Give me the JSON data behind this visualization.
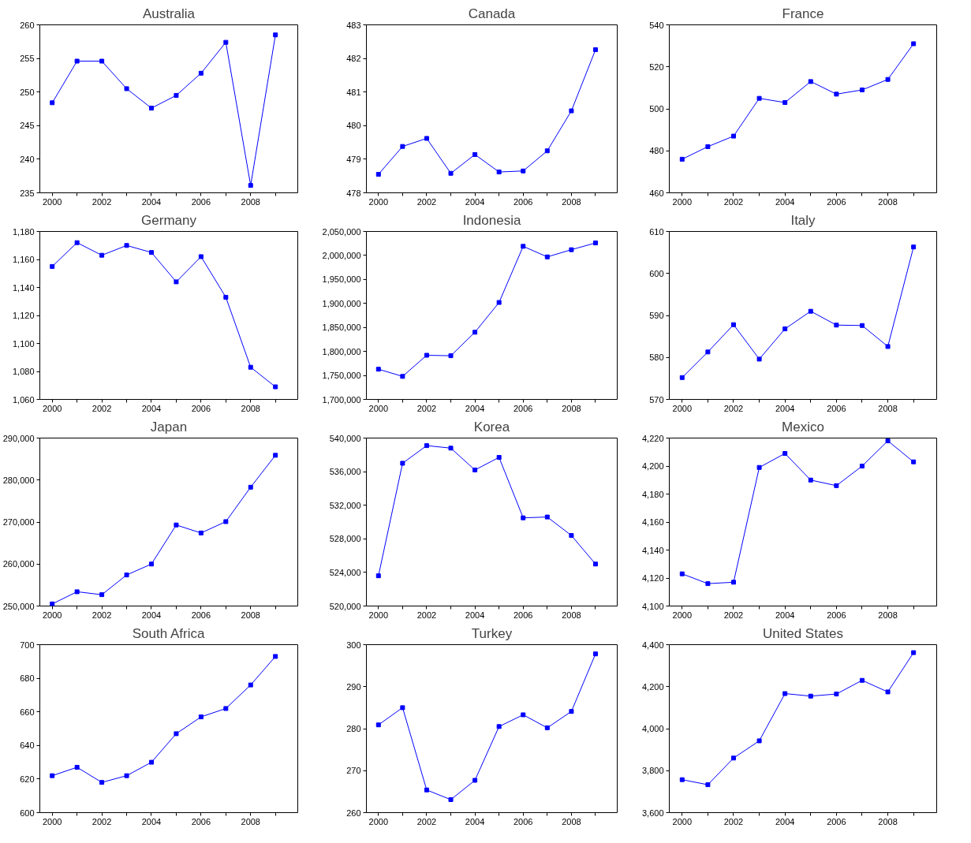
{
  "chart_data": [
    {
      "type": "line",
      "title": "Australia",
      "color": "#0000ff",
      "marker": "square",
      "x": [
        2000,
        2001,
        2002,
        2003,
        2004,
        2005,
        2006,
        2007,
        2008,
        2009
      ],
      "values": [
        248.4,
        254.6,
        254.6,
        250.5,
        247.6,
        249.5,
        252.8,
        257.4,
        236.1,
        258.5
      ],
      "xlim": [
        1999.5,
        2009.9
      ],
      "xticks": [
        2000,
        {
          "value": 2001,
          "label": null
        },
        2002,
        {
          "value": 2003,
          "label": null
        },
        2004,
        {
          "value": 2005,
          "label": null
        },
        2006,
        {
          "value": 2007,
          "label": null
        },
        2008,
        {
          "value": 2009,
          "label": null
        }
      ],
      "ylim": [
        235,
        260
      ],
      "yticks": [
        235,
        240,
        245,
        250,
        255,
        260
      ]
    },
    {
      "type": "line",
      "title": "Canada",
      "color": "#0000ff",
      "marker": "square",
      "x": [
        2000,
        2001,
        2002,
        2003,
        2004,
        2005,
        2006,
        2007,
        2008,
        2009
      ],
      "values": [
        478.55,
        479.38,
        479.62,
        478.58,
        479.14,
        478.62,
        478.65,
        479.25,
        480.44,
        482.26
      ],
      "xlim": [
        1999.5,
        2009.9
      ],
      "xticks": [
        2000,
        {
          "value": 2001,
          "label": null
        },
        2002,
        {
          "value": 2003,
          "label": null
        },
        2004,
        {
          "value": 2005,
          "label": null
        },
        2006,
        {
          "value": 2007,
          "label": null
        },
        2008,
        {
          "value": 2009,
          "label": null
        }
      ],
      "ylim": [
        478,
        483
      ],
      "yticks": [
        478,
        479,
        480,
        481,
        482,
        483
      ]
    },
    {
      "type": "line",
      "title": "France",
      "color": "#0000ff",
      "marker": "square",
      "x": [
        2000,
        2001,
        2002,
        2003,
        2004,
        2005,
        2006,
        2007,
        2008,
        2009
      ],
      "values": [
        476,
        482,
        487,
        505,
        503,
        513,
        507,
        509,
        514,
        531
      ],
      "xlim": [
        1999.5,
        2009.9
      ],
      "xticks": [
        2000,
        {
          "value": 2001,
          "label": null
        },
        2002,
        {
          "value": 2003,
          "label": null
        },
        2004,
        {
          "value": 2005,
          "label": null
        },
        2006,
        {
          "value": 2007,
          "label": null
        },
        2008,
        {
          "value": 2009,
          "label": null
        }
      ],
      "ylim": [
        460,
        540
      ],
      "yticks": [
        460,
        480,
        500,
        520,
        540
      ]
    },
    {
      "type": "line",
      "title": "Germany",
      "color": "#0000ff",
      "marker": "square",
      "x": [
        2000,
        2001,
        2002,
        2003,
        2004,
        2005,
        2006,
        2007,
        2008,
        2009
      ],
      "values": [
        1155,
        1172,
        1163,
        1170,
        1165,
        1144,
        1162,
        1133,
        1083,
        1069
      ],
      "xlim": [
        1999.5,
        2009.9
      ],
      "xticks": [
        2000,
        {
          "value": 2001,
          "label": null
        },
        2002,
        {
          "value": 2003,
          "label": null
        },
        2004,
        {
          "value": 2005,
          "label": null
        },
        2006,
        {
          "value": 2007,
          "label": null
        },
        2008,
        {
          "value": 2009,
          "label": null
        }
      ],
      "ylim": [
        1060,
        1180
      ],
      "yticks": [
        {
          "value": 1060,
          "label": "1,060"
        },
        {
          "value": 1080,
          "label": "1,080"
        },
        {
          "value": 1100,
          "label": "1,100"
        },
        {
          "value": 1120,
          "label": "1,120"
        },
        {
          "value": 1140,
          "label": "1,140"
        },
        {
          "value": 1160,
          "label": "1,160"
        },
        {
          "value": 1180,
          "label": "1,180"
        }
      ]
    },
    {
      "type": "line",
      "title": "Indonesia",
      "color": "#0000ff",
      "marker": "square",
      "x": [
        2000,
        2001,
        2002,
        2003,
        2004,
        2005,
        2006,
        2007,
        2008,
        2009
      ],
      "values": [
        1763000,
        1748000,
        1792000,
        1791000,
        1840000,
        1902000,
        2019000,
        1997000,
        2012000,
        2026000
      ],
      "xlim": [
        1999.5,
        2009.9
      ],
      "xticks": [
        2000,
        {
          "value": 2001,
          "label": null
        },
        2002,
        {
          "value": 2003,
          "label": null
        },
        2004,
        {
          "value": 2005,
          "label": null
        },
        2006,
        {
          "value": 2007,
          "label": null
        },
        2008,
        {
          "value": 2009,
          "label": null
        }
      ],
      "ylim": [
        1700000,
        2050000
      ],
      "yticks": [
        {
          "value": 1700000,
          "label": "1,700,000"
        },
        {
          "value": 1750000,
          "label": "1,750,000"
        },
        {
          "value": 1800000,
          "label": "1,800,000"
        },
        {
          "value": 1850000,
          "label": "1,850,000"
        },
        {
          "value": 1900000,
          "label": "1,900,000"
        },
        {
          "value": 1950000,
          "label": "1,950,000"
        },
        {
          "value": 2000000,
          "label": "2,000,000"
        },
        {
          "value": 2050000,
          "label": "2,050,000"
        }
      ]
    },
    {
      "type": "line",
      "title": "Italy",
      "color": "#0000ff",
      "marker": "square",
      "x": [
        2000,
        2001,
        2002,
        2003,
        2004,
        2005,
        2006,
        2007,
        2008,
        2009
      ],
      "values": [
        575.2,
        581.3,
        587.8,
        579.6,
        586.8,
        591.0,
        587.7,
        587.6,
        582.6,
        606.3
      ],
      "xlim": [
        1999.5,
        2009.9
      ],
      "xticks": [
        2000,
        {
          "value": 2001,
          "label": null
        },
        2002,
        {
          "value": 2003,
          "label": null
        },
        2004,
        {
          "value": 2005,
          "label": null
        },
        2006,
        {
          "value": 2007,
          "label": null
        },
        2008,
        {
          "value": 2009,
          "label": null
        }
      ],
      "ylim": [
        570,
        610
      ],
      "yticks": [
        570,
        580,
        590,
        600,
        610
      ]
    },
    {
      "type": "line",
      "title": "Japan",
      "color": "#0000ff",
      "marker": "square",
      "x": [
        2000,
        2001,
        2002,
        2003,
        2004,
        2005,
        2006,
        2007,
        2008,
        2009
      ],
      "values": [
        250500,
        253400,
        252700,
        257400,
        260000,
        269300,
        267400,
        270100,
        278300,
        285900
      ],
      "xlim": [
        1999.5,
        2009.9
      ],
      "xticks": [
        2000,
        {
          "value": 2001,
          "label": null
        },
        2002,
        {
          "value": 2003,
          "label": null
        },
        2004,
        {
          "value": 2005,
          "label": null
        },
        2006,
        {
          "value": 2007,
          "label": null
        },
        2008,
        {
          "value": 2009,
          "label": null
        }
      ],
      "ylim": [
        250000,
        290000
      ],
      "yticks": [
        {
          "value": 250000,
          "label": "250,000"
        },
        {
          "value": 260000,
          "label": "260,000"
        },
        {
          "value": 270000,
          "label": "270,000"
        },
        {
          "value": 280000,
          "label": "280,000"
        },
        {
          "value": 290000,
          "label": "290,000"
        }
      ]
    },
    {
      "type": "line",
      "title": "Korea",
      "color": "#0000ff",
      "marker": "square",
      "x": [
        2000,
        2001,
        2002,
        2003,
        2004,
        2005,
        2006,
        2007,
        2008,
        2009
      ],
      "values": [
        523600,
        537000,
        539100,
        538800,
        536200,
        537700,
        530500,
        530600,
        528400,
        525000
      ],
      "xlim": [
        1999.5,
        2009.9
      ],
      "xticks": [
        2000,
        {
          "value": 2001,
          "label": null
        },
        2002,
        {
          "value": 2003,
          "label": null
        },
        2004,
        {
          "value": 2005,
          "label": null
        },
        2006,
        {
          "value": 2007,
          "label": null
        },
        2008,
        {
          "value": 2009,
          "label": null
        }
      ],
      "ylim": [
        520000,
        540000
      ],
      "yticks": [
        {
          "value": 520000,
          "label": "520,000"
        },
        {
          "value": 524000,
          "label": "524,000"
        },
        {
          "value": 528000,
          "label": "528,000"
        },
        {
          "value": 532000,
          "label": "532,000"
        },
        {
          "value": 536000,
          "label": "536,000"
        },
        {
          "value": 540000,
          "label": "540,000"
        }
      ]
    },
    {
      "type": "line",
      "title": "Mexico",
      "color": "#0000ff",
      "marker": "square",
      "x": [
        2000,
        2001,
        2002,
        2003,
        2004,
        2005,
        2006,
        2007,
        2008,
        2009
      ],
      "values": [
        4123,
        4116,
        4117,
        4199,
        4209,
        4190,
        4186,
        4200,
        4218,
        4203
      ],
      "xlim": [
        1999.5,
        2009.9
      ],
      "xticks": [
        2000,
        {
          "value": 2001,
          "label": null
        },
        2002,
        {
          "value": 2003,
          "label": null
        },
        2004,
        {
          "value": 2005,
          "label": null
        },
        2006,
        {
          "value": 2007,
          "label": null
        },
        2008,
        {
          "value": 2009,
          "label": null
        }
      ],
      "ylim": [
        4100,
        4220
      ],
      "yticks": [
        {
          "value": 4100,
          "label": "4,100"
        },
        {
          "value": 4120,
          "label": "4,120"
        },
        {
          "value": 4140,
          "label": "4,140"
        },
        {
          "value": 4160,
          "label": "4,160"
        },
        {
          "value": 4180,
          "label": "4,180"
        },
        {
          "value": 4200,
          "label": "4,200"
        },
        {
          "value": 4220,
          "label": "4,220"
        }
      ]
    },
    {
      "type": "line",
      "title": "South Africa",
      "color": "#0000ff",
      "marker": "square",
      "x": [
        2000,
        2001,
        2002,
        2003,
        2004,
        2005,
        2006,
        2007,
        2008,
        2009
      ],
      "values": [
        622,
        627,
        618,
        622,
        630,
        647,
        657,
        662,
        676,
        693
      ],
      "xlim": [
        1999.5,
        2009.9
      ],
      "xticks": [
        2000,
        {
          "value": 2001,
          "label": null
        },
        2002,
        {
          "value": 2003,
          "label": null
        },
        2004,
        {
          "value": 2005,
          "label": null
        },
        2006,
        {
          "value": 2007,
          "label": null
        },
        2008,
        {
          "value": 2009,
          "label": null
        }
      ],
      "ylim": [
        600,
        700
      ],
      "yticks": [
        600,
        620,
        640,
        660,
        680,
        700
      ]
    },
    {
      "type": "line",
      "title": "Turkey",
      "color": "#0000ff",
      "marker": "square",
      "x": [
        2000,
        2001,
        2002,
        2003,
        2004,
        2005,
        2006,
        2007,
        2008,
        2009
      ],
      "values": [
        280.9,
        285.0,
        265.4,
        263.1,
        267.7,
        280.5,
        283.3,
        280.2,
        284.1,
        297.8
      ],
      "xlim": [
        1999.5,
        2009.9
      ],
      "xticks": [
        2000,
        {
          "value": 2001,
          "label": null
        },
        2002,
        {
          "value": 2003,
          "label": null
        },
        2004,
        {
          "value": 2005,
          "label": null
        },
        2006,
        {
          "value": 2007,
          "label": null
        },
        2008,
        {
          "value": 2009,
          "label": null
        }
      ],
      "ylim": [
        260,
        300
      ],
      "yticks": [
        260,
        270,
        280,
        290,
        300
      ]
    },
    {
      "type": "line",
      "title": "United States",
      "color": "#0000ff",
      "marker": "square",
      "x": [
        2000,
        2001,
        2002,
        2003,
        2004,
        2005,
        2006,
        2007,
        2008,
        2009
      ],
      "values": [
        3757,
        3733,
        3860,
        3942,
        4167,
        4155,
        4165,
        4230,
        4175,
        4362
      ],
      "xlim": [
        1999.5,
        2009.9
      ],
      "xticks": [
        2000,
        {
          "value": 2001,
          "label": null
        },
        2002,
        {
          "value": 2003,
          "label": null
        },
        2004,
        {
          "value": 2005,
          "label": null
        },
        2006,
        {
          "value": 2007,
          "label": null
        },
        2008,
        {
          "value": 2009,
          "label": null
        }
      ],
      "ylim": [
        3600,
        4400
      ],
      "yticks": [
        {
          "value": 3600,
          "label": "3,600"
        },
        {
          "value": 3800,
          "label": "3,800"
        },
        {
          "value": 4000,
          "label": "4,000"
        },
        {
          "value": 4200,
          "label": "4,200"
        },
        {
          "value": 4400,
          "label": "4,400"
        }
      ]
    }
  ]
}
